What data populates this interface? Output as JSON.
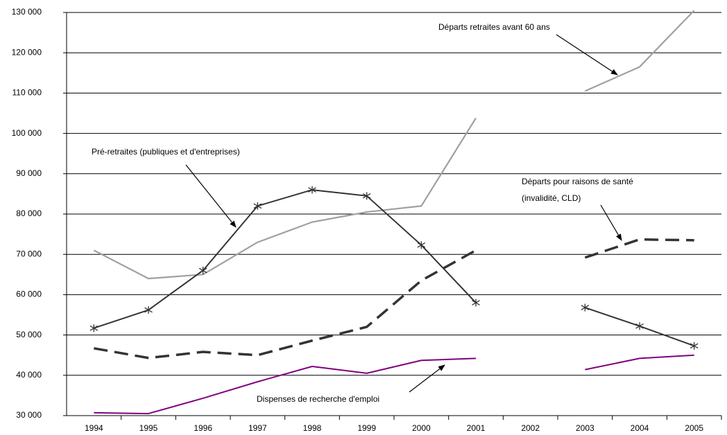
{
  "chart_data": {
    "type": "line",
    "categories": [
      "1994",
      "1995",
      "1996",
      "1997",
      "1998",
      "1999",
      "2000",
      "2001",
      "2002",
      "2003",
      "2004",
      "2005"
    ],
    "series": [
      {
        "color": "#a0a0a0",
        "style": "solid",
        "marker": "none",
        "values": [
          71000,
          64000,
          65000,
          73000,
          78000,
          80500,
          82000,
          103800,
          null,
          110500,
          116500,
          130500
        ]
      },
      {
        "color": "#333333",
        "style": "solid",
        "marker": "star",
        "values": [
          51700,
          56200,
          66000,
          82000,
          86000,
          84500,
          72300,
          58000,
          null,
          56800,
          52200,
          47300
        ]
      },
      {
        "color": "#333333",
        "style": "dashed",
        "marker": "none",
        "values": [
          46700,
          44300,
          45800,
          45000,
          48600,
          52000,
          63500,
          71000,
          null,
          69200,
          73700,
          73500
        ]
      },
      {
        "color": "#800080",
        "style": "solid",
        "marker": "none",
        "values": [
          30700,
          30500,
          34300,
          38400,
          42200,
          40500,
          43700,
          44200,
          null,
          41400,
          44200,
          45000
        ]
      }
    ],
    "annotations": [
      {
        "lines": [
          "Départs retraites avant 60 ans"
        ]
      },
      {
        "lines": [
          "Pré-retraites (publiques et  d'entreprises)"
        ]
      },
      {
        "lines": [
          "Départs pour raisons de santé",
          "(invalidité, CLD)"
        ]
      },
      {
        "lines": [
          "Dispenses de recherche d'emploi"
        ]
      }
    ],
    "ylim": [
      30000,
      130000
    ],
    "yticks": [
      {
        "value": 30000,
        "label": "30 000"
      },
      {
        "value": 40000,
        "label": "40 000"
      },
      {
        "value": 50000,
        "label": "50 000"
      },
      {
        "value": 60000,
        "label": "60 000"
      },
      {
        "value": 70000,
        "label": "70 000"
      },
      {
        "value": 80000,
        "label": "80 000"
      },
      {
        "value": 90000,
        "label": "90 000"
      },
      {
        "value": 100000,
        "label": "100 000"
      },
      {
        "value": 110000,
        "label": "110 000"
      },
      {
        "value": 120000,
        "label": "120 000"
      },
      {
        "value": 130000,
        "label": "130 000"
      }
    ],
    "grid": true
  }
}
